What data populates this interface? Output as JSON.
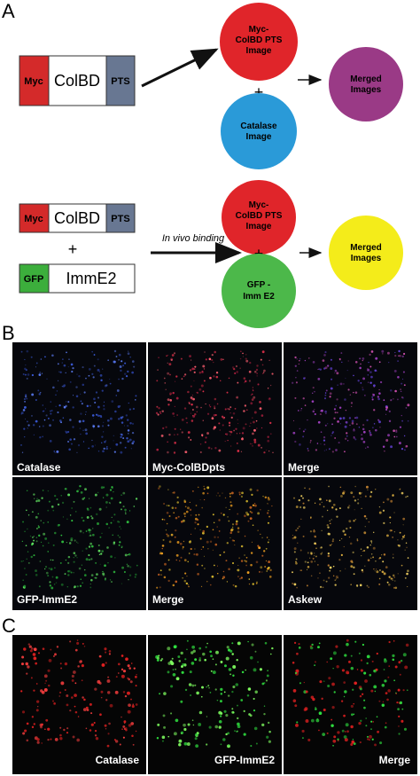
{
  "panel_a": {
    "label": "A",
    "row1": {
      "construct": [
        "Myc",
        "ColBD",
        "PTS"
      ],
      "plus": "+",
      "image1": [
        "Myc-",
        "ColBD PTS",
        "Image"
      ],
      "image2": [
        "Catalase",
        "Image"
      ],
      "merged": [
        "Merged",
        "Images"
      ]
    },
    "row2": {
      "construct1": [
        "Myc",
        "ColBD",
        "PTS"
      ],
      "plus": "+",
      "construct2": [
        "GFP",
        "ImmE2"
      ],
      "binding": "In vivo binding",
      "image1": [
        "Myc-",
        "ColBD PTS",
        "Image"
      ],
      "image2": [
        "GFP -",
        "Imm E2"
      ],
      "merged": [
        "Merged",
        "Images"
      ]
    }
  },
  "panel_b": {
    "label": "B",
    "captions": [
      "Catalase",
      "Myc-ColBDpts",
      "Merge",
      "GFP-ImmE2",
      "Merge",
      "Askew"
    ]
  },
  "panel_c": {
    "label": "C",
    "captions": [
      "Catalase",
      "GFP-ImmE2",
      "Merge"
    ]
  }
}
